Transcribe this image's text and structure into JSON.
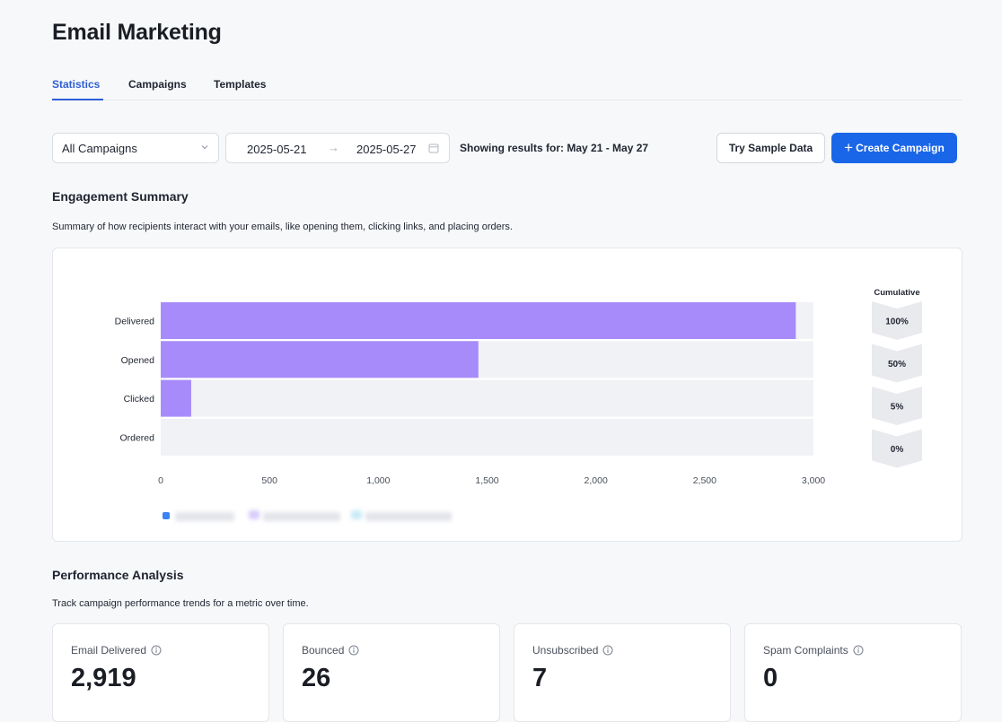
{
  "header": {
    "title": "Email Marketing"
  },
  "tabs": [
    {
      "label": "Statistics",
      "active": true
    },
    {
      "label": "Campaigns",
      "active": false
    },
    {
      "label": "Templates",
      "active": false
    }
  ],
  "toolbar": {
    "campaign_select": "All Campaigns",
    "date_start": "2025-05-21",
    "date_end": "2025-05-27",
    "showing_text": "Showing results for: May 21 - May 27",
    "sample_button": "Try Sample Data",
    "create_button": "Create Campaign"
  },
  "engagement": {
    "title": "Engagement Summary",
    "description": "Summary of how recipients interact with your emails, like opening them, clicking links, and placing orders."
  },
  "chart_data": {
    "type": "bar",
    "orientation": "horizontal",
    "categories": [
      "Delivered",
      "Opened",
      "Clicked",
      "Ordered"
    ],
    "values": [
      2919,
      1460,
      140,
      0
    ],
    "xlim": [
      0,
      3000
    ],
    "xticks": [
      "0",
      "500",
      "1,000",
      "1,500",
      "2,000",
      "2,500",
      "3,000"
    ],
    "xtick_values": [
      0,
      500,
      1000,
      1500,
      2000,
      2500,
      3000
    ],
    "cumulative_label": "Cumulative",
    "cumulative": [
      "100%",
      "50%",
      "5%",
      "0%"
    ],
    "bar_color": "#a78bfa",
    "track_color": "#f1f2f5"
  },
  "performance": {
    "title": "Performance Analysis",
    "description": "Track campaign performance trends for a metric over time."
  },
  "metrics": [
    {
      "label": "Email Delivered",
      "value": "2,919"
    },
    {
      "label": "Bounced",
      "value": "26"
    },
    {
      "label": "Unsubscribed",
      "value": "7"
    },
    {
      "label": "Spam Complaints",
      "value": "0"
    }
  ],
  "colors": {
    "accent": "#1a66e8",
    "active_tab": "#2f5fd6"
  }
}
